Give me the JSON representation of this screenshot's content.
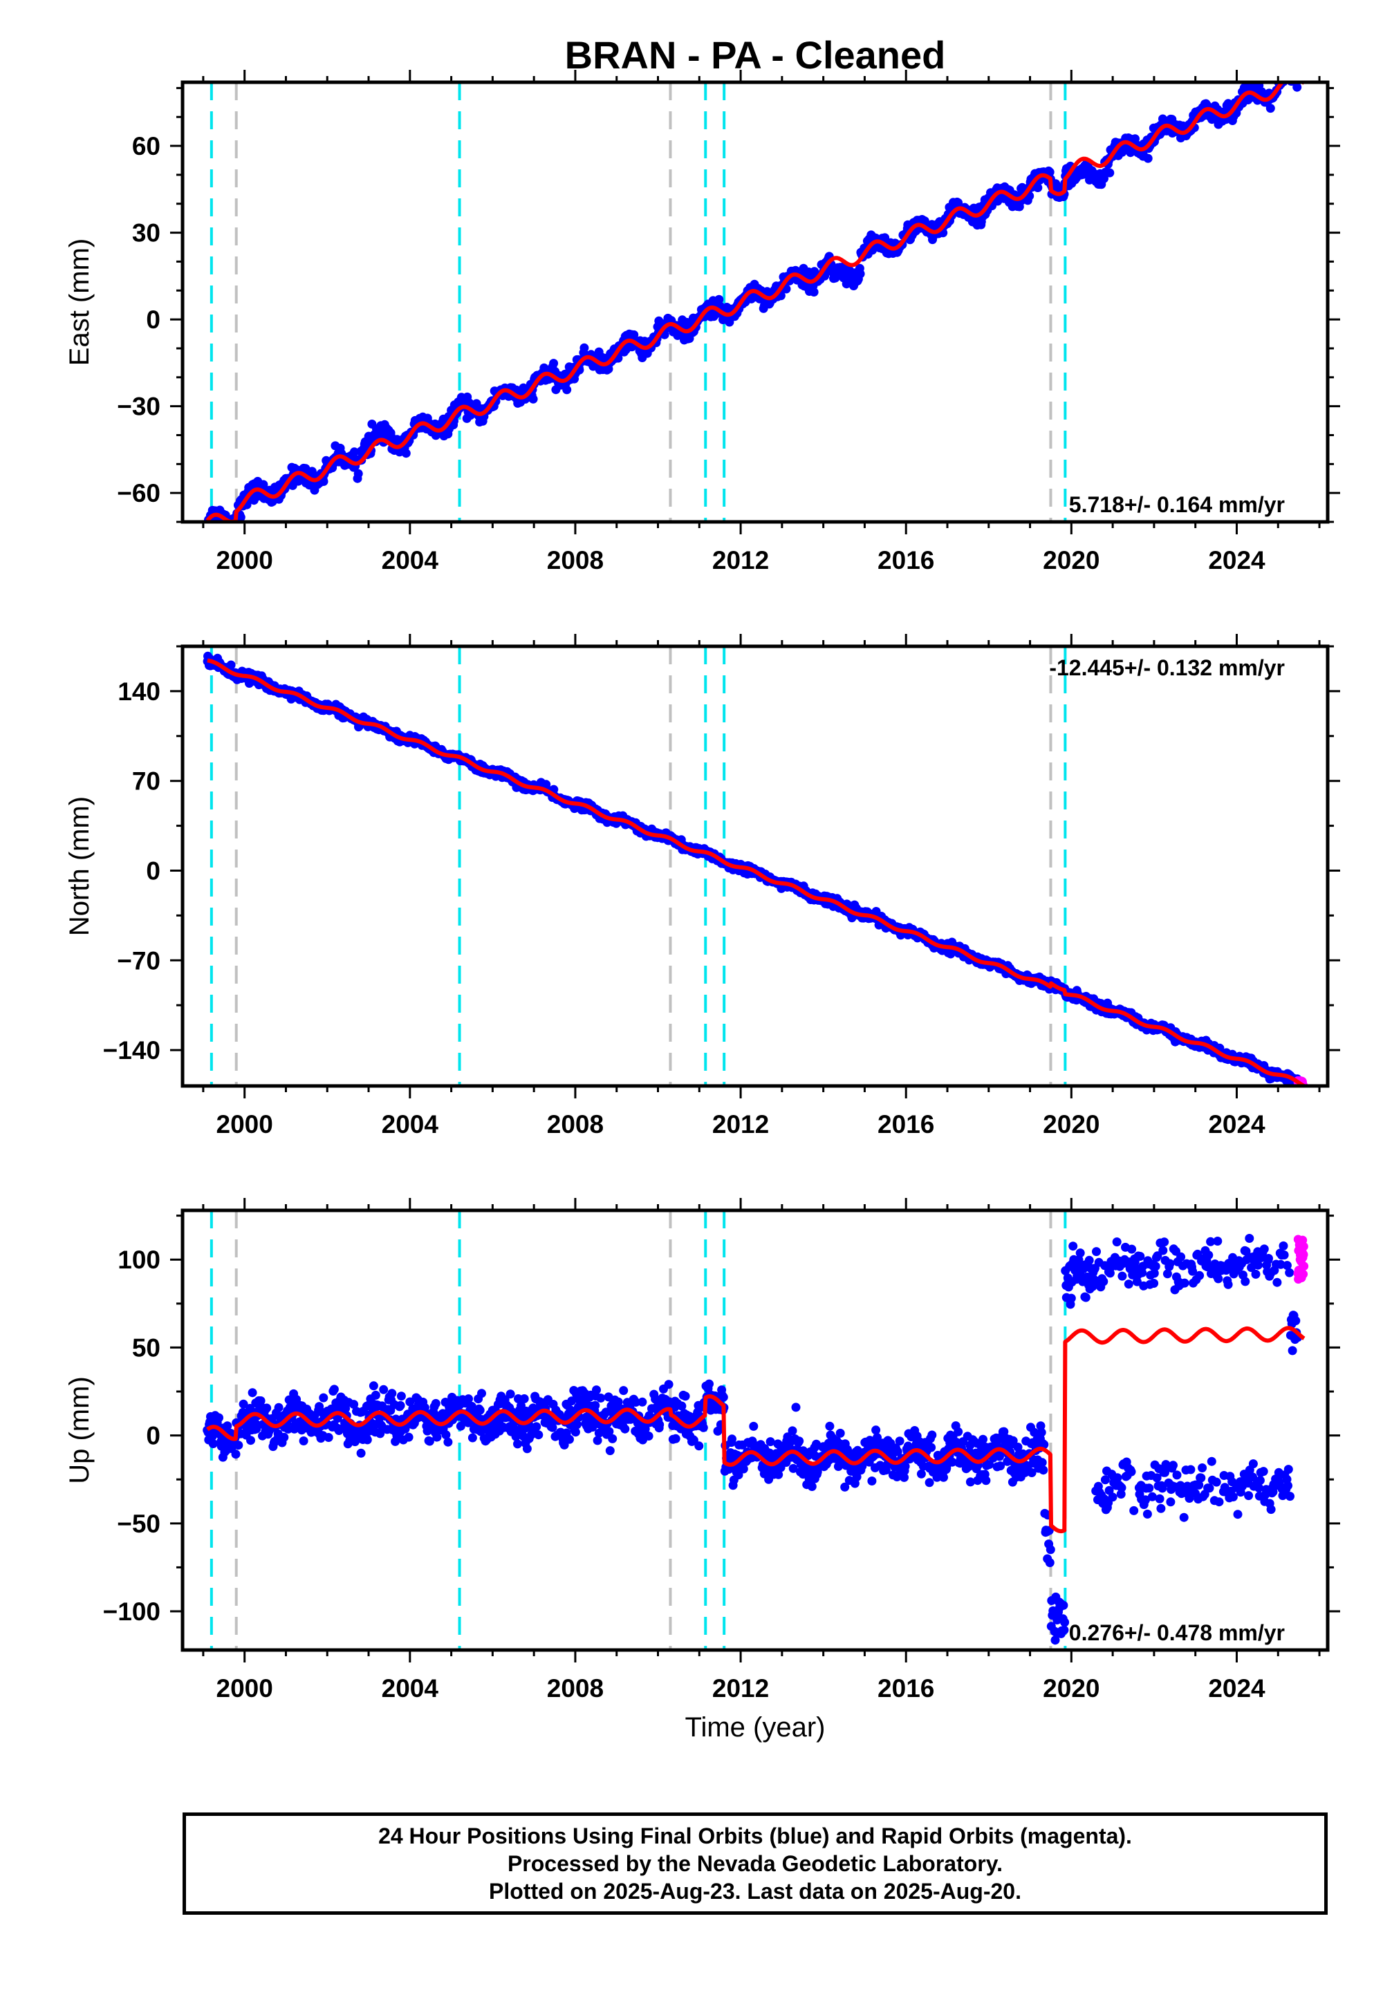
{
  "chart_data": {
    "type": "scatter",
    "title": "BRAN  - PA - Cleaned",
    "xlabel": "Time (year)",
    "xlim": [
      1998.5,
      2026.2
    ],
    "x_ticks": [
      2000,
      2004,
      2008,
      2012,
      2016,
      2020,
      2024
    ],
    "x_minor_step": 1,
    "colors": {
      "final": "#0000ff",
      "rapid": "#ff00ff",
      "model": "#ff0000",
      "equipment_change": "#00e5ee",
      "earthquake": "#c0c0c0"
    },
    "events": {
      "cyan": [
        1999.2,
        2005.2,
        2011.15,
        2011.6,
        2019.85
      ],
      "gray": [
        1999.8,
        2010.3,
        2019.5
      ]
    },
    "data_range": [
      1999.1,
      2025.63
    ],
    "rapid_range": [
      2025.48,
      2025.63
    ],
    "panels": [
      {
        "name": "East",
        "ylabel": "East (mm)",
        "ylim": [
          -70,
          82
        ],
        "y_ticks": [
          -60,
          -30,
          0,
          30,
          60
        ],
        "y_minor_step": 10,
        "rate_text": "5.718+/- 0.164 mm/yr",
        "rate_position": "bottom-right",
        "model": {
          "rate": 5.718,
          "ref_year": 2011.0,
          "ref_value": -3.0,
          "annual_amp": 2.5,
          "steps": [
            {
              "t": 1999.8,
              "d": 3.0
            },
            {
              "t": 2019.5,
              "d": -4.0
            },
            {
              "t": 2019.85,
              "d": 4.0
            }
          ]
        },
        "scatter_sigma": 1.5,
        "excursions": [
          {
            "t0": 2014.2,
            "t1": 2014.9,
            "d": -6
          },
          {
            "t0": 2020.0,
            "t1": 2020.8,
            "d": -5
          },
          {
            "t0": 2002.8,
            "t1": 2003.6,
            "d": 3
          }
        ],
        "rapid_offset": 6
      },
      {
        "name": "North",
        "ylabel": "North (mm)",
        "ylim": [
          -168,
          175
        ],
        "y_ticks": [
          -140,
          -70,
          0,
          70,
          140
        ],
        "y_minor_step": 35,
        "rate_text": "-12.445+/- 0.132 mm/yr",
        "rate_position": "top-right",
        "model": {
          "rate": -12.445,
          "ref_year": 2011.0,
          "ref_value": 15.0,
          "annual_amp": 1.5,
          "steps": [
            {
              "t": 2019.5,
              "d": 3.0
            },
            {
              "t": 2019.85,
              "d": -3.0
            }
          ]
        },
        "scatter_sigma": 1.7,
        "excursions": [],
        "rapid_offset": 0
      },
      {
        "name": "Up",
        "ylabel": "Up (mm)",
        "ylim": [
          -122,
          128
        ],
        "y_ticks": [
          -100,
          -50,
          0,
          50,
          100
        ],
        "y_minor_step": 25,
        "rate_text": "0.276+/- 0.478 mm/yr",
        "rate_position": "bottom-right",
        "model": {
          "rate": 0.276,
          "ref_year": 2005.0,
          "ref_value": 3.0,
          "annual_amp": 3.5,
          "steps": [
            {
              "t": 1999.8,
              "d": 7.0
            },
            {
              "t": 2010.3,
              "d": -3.0
            },
            {
              "t": 2011.15,
              "d": 10.0
            },
            {
              "t": 2011.6,
              "d": -32.0
            },
            {
              "t": 2019.5,
              "d": -40.0
            },
            {
              "t": 2019.85,
              "d": 107.0
            }
          ]
        },
        "scatter_sigma": 6.0,
        "excursions": [
          {
            "t0": 2019.35,
            "t1": 2019.85,
            "d": -60
          },
          {
            "t0": 2019.85,
            "t1": 2020.55,
            "d": 40
          },
          {
            "t0": 2020.55,
            "t1": 2025.3,
            "d": 40,
            "split": -85
          }
        ],
        "rapid_offset": 44
      }
    ]
  },
  "footer": {
    "lines": [
      "24 Hour Positions Using Final Orbits (blue) and Rapid Orbits (magenta).",
      "Processed by the Nevada Geodetic Laboratory.",
      "Plotted on 2025-Aug-23. Last data on 2025-Aug-20."
    ]
  }
}
